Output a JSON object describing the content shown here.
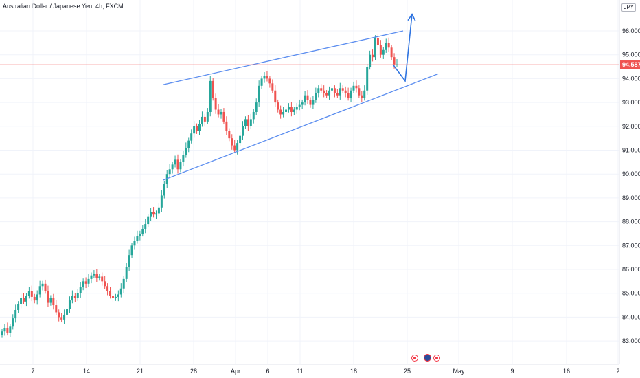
{
  "chart_data": {
    "type": "candlestick",
    "title": "Australian Dollar / Japanese Yen, 4h, FXCM",
    "currency_badge": "JPY",
    "last_price": "94.587",
    "y_ticks": [
      "83.000",
      "84.000",
      "85.000",
      "86.000",
      "87.000",
      "88.000",
      "89.000",
      "90.000",
      "91.000",
      "92.000",
      "93.000",
      "94.000",
      "95.000",
      "96.000"
    ],
    "ylim": [
      82.5,
      96.9
    ],
    "x_ticks": [
      "7",
      "14",
      "21",
      "28",
      "Apr",
      "6",
      "11",
      "18",
      "25",
      "May",
      "9",
      "16",
      "2"
    ],
    "colors": {
      "up": "#26a69a",
      "down": "#ef5350",
      "trendline": "#5b8def",
      "last_price": "#ef5350",
      "arrow": "#2f74e0"
    },
    "series": [
      {
        "values": [
          83.4,
          83.55,
          83.35,
          83.6,
          83.95,
          84.3,
          84.55,
          84.8,
          84.65,
          84.9,
          85.1,
          84.85,
          84.7,
          84.95,
          85.3,
          85.4,
          85.1,
          84.6,
          84.8,
          84.5,
          84.2,
          84.0,
          83.9,
          84.1,
          84.35,
          84.7,
          84.9,
          84.8,
          85.0,
          85.25,
          85.5,
          85.4,
          85.6,
          85.75,
          85.8,
          85.65,
          85.7,
          85.5,
          85.3,
          85.1,
          84.9,
          84.8,
          84.85,
          84.95,
          85.2,
          85.6,
          86.1,
          86.6,
          87.0,
          87.2,
          87.4,
          87.5,
          87.7,
          87.9,
          88.2,
          88.4,
          88.3,
          88.35,
          88.6,
          89.1,
          89.6,
          90.0,
          90.2,
          90.4,
          90.6,
          90.2,
          90.5,
          90.8,
          91.1,
          91.4,
          91.7,
          92.0,
          91.8,
          92.1,
          92.4,
          92.2,
          92.6,
          93.9,
          93.2,
          92.7,
          92.5,
          92.6,
          92.2,
          91.8,
          91.5,
          91.2,
          91.0,
          91.3,
          91.6,
          92.0,
          92.3,
          92.0,
          92.3,
          92.6,
          93.0,
          93.7,
          94.0,
          94.1,
          94.0,
          93.8,
          93.5,
          93.0,
          92.7,
          92.5,
          92.6,
          92.7,
          92.8,
          92.6,
          92.7,
          92.8,
          92.9,
          93.0,
          93.3,
          93.1,
          92.9,
          93.1,
          93.4,
          93.6,
          93.5,
          93.4,
          93.3,
          93.5,
          93.6,
          93.4,
          93.3,
          93.6,
          93.5,
          93.4,
          93.2,
          93.5,
          93.7,
          93.6,
          93.3,
          93.2,
          93.5,
          94.5,
          95.0,
          94.9,
          95.7,
          95.4,
          95.0,
          95.2,
          95.5,
          95.3,
          94.9,
          94.6,
          94.6
        ]
      }
    ],
    "annotations": {
      "trend_upper": {
        "from": [
          "Mar 22",
          93.75
        ],
        "to": [
          "Apr 21",
          96.0
        ]
      },
      "trend_lower": {
        "from": [
          "Mar 22",
          89.75
        ],
        "to": [
          "Apr 26",
          94.2
        ]
      },
      "projection": {
        "points": [
          [
            "Apr 23",
            94.6
          ],
          [
            "Apr 24",
            93.9
          ],
          [
            "Apr 25",
            96.7
          ]
        ]
      }
    }
  }
}
